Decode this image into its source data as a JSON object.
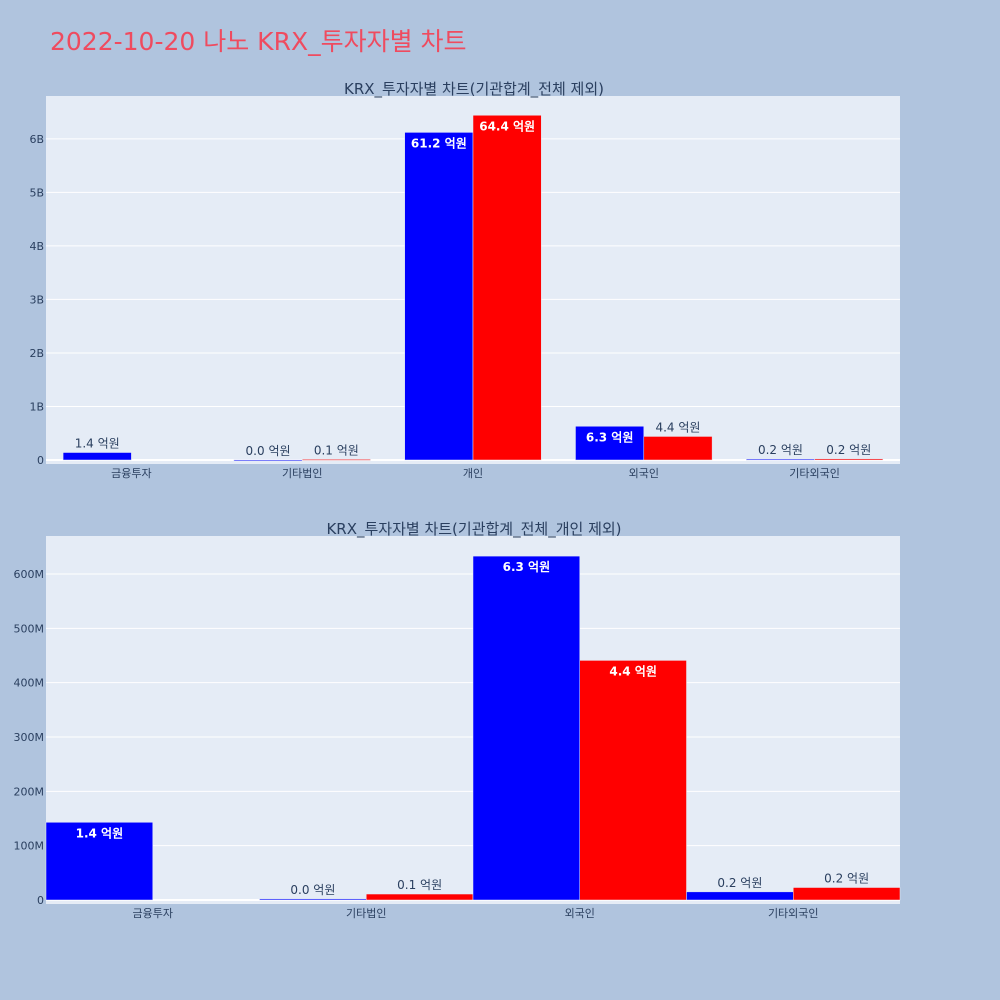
{
  "page": {
    "title": "2022-10-20 나노 KRX_투자자별 차트"
  },
  "colors": {
    "background": "#b0c4de",
    "plot_bg": "#e5ecf6",
    "series_a": "#0000ff",
    "series_b": "#ff0000",
    "title": "#ef4b5f"
  },
  "chart_data": [
    {
      "type": "bar",
      "title": "KRX_투자자별 차트(기관합계_전체 제외)",
      "categories": [
        "금융투자",
        "기타법인",
        "개인",
        "외국인",
        "기타외국인"
      ],
      "ylim": [
        0,
        6800000000
      ],
      "yticks": [
        0,
        1000000000,
        2000000000,
        3000000000,
        4000000000,
        5000000000,
        6000000000
      ],
      "ytick_labels": [
        "0",
        "1B",
        "2B",
        "3B",
        "4B",
        "5B",
        "6B"
      ],
      "grid": true,
      "series": [
        {
          "values": [
            140000000,
            2000000,
            6120000000,
            630000000,
            15000000
          ],
          "labels": [
            "1.4 억원",
            "0.0 억원",
            "61.2 억원",
            "6.3 억원",
            "0.2 억원"
          ]
        },
        {
          "values": [
            0,
            11000000,
            6440000000,
            440000000,
            22000000
          ],
          "labels": [
            "",
            "0.1 억원",
            "64.4 억원",
            "4.4 억원",
            "0.2 억원"
          ]
        }
      ]
    },
    {
      "type": "bar",
      "title": "KRX_투자자별 차트(기관합계_전체_개인 제외)",
      "categories": [
        "금융투자",
        "기타법인",
        "외국인",
        "기타외국인"
      ],
      "ylim": [
        0,
        670000000
      ],
      "yticks": [
        0,
        100000000,
        200000000,
        300000000,
        400000000,
        500000000,
        600000000
      ],
      "ytick_labels": [
        "0",
        "100M",
        "200M",
        "300M",
        "400M",
        "500M",
        "600M"
      ],
      "grid": true,
      "series": [
        {
          "values": [
            143000000,
            2000000,
            633000000,
            15000000
          ],
          "labels": [
            "1.4 억원",
            "0.0 억원",
            "6.3 억원",
            "0.2 억원"
          ]
        },
        {
          "values": [
            0,
            11000000,
            441000000,
            23000000
          ],
          "labels": [
            "",
            "0.1 억원",
            "4.4 억원",
            "0.2 억원"
          ]
        }
      ]
    }
  ]
}
